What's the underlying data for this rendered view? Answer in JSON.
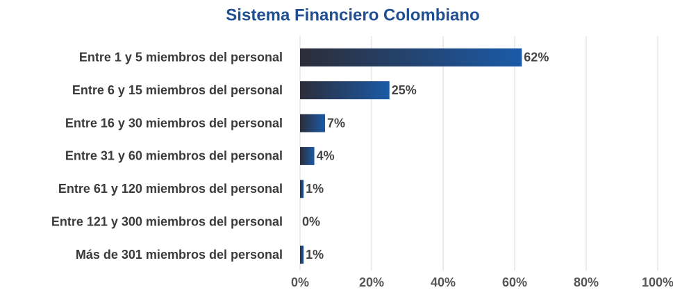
{
  "chart_data": {
    "type": "barh",
    "title": "Sistema Financiero Colombiano",
    "categories": [
      "Entre 1 y 5 miembros del personal",
      "Entre 6 y 15 miembros del personal",
      "Entre 16 y 30 miembros del personal",
      "Entre 31 y 60 miembros del personal",
      "Entre 61 y 120 miembros del personal",
      "Entre 121 y 300 miembros del personal",
      "Más de 301 miembros del personal"
    ],
    "values": [
      62,
      25,
      7,
      4,
      1,
      0,
      1
    ],
    "value_labels": [
      "62%",
      "25%",
      "7%",
      "4%",
      "1%",
      "0%",
      "1%"
    ],
    "color": [
      "#2c2d39",
      "#1b5aa7"
    ],
    "xlim": [
      0,
      100
    ],
    "xticks": [
      {
        "value": 0,
        "label": "0%"
      },
      {
        "value": 20,
        "label": "20%"
      },
      {
        "value": 40,
        "label": "40%"
      },
      {
        "value": 60,
        "label": "60%"
      },
      {
        "value": 80,
        "label": "80%"
      },
      {
        "value": 100,
        "label": "100%"
      }
    ],
    "grid": true
  }
}
